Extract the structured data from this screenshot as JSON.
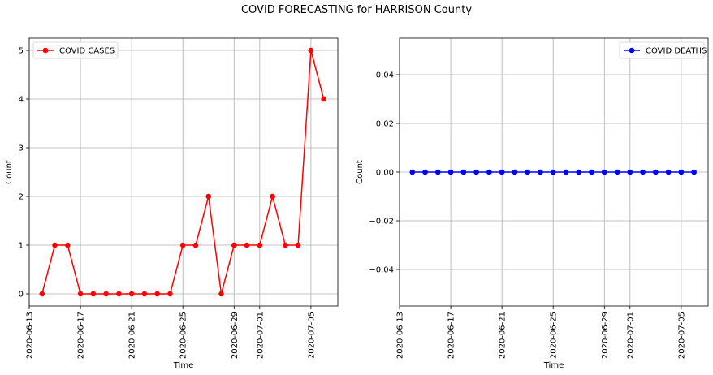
{
  "figure": {
    "title": "COVID FORECASTING for HARRISON County"
  },
  "chart_data": [
    {
      "type": "line",
      "title": "",
      "xlabel": "Time",
      "ylabel": "Count",
      "x": [
        "2020-06-14",
        "2020-06-15",
        "2020-06-16",
        "2020-06-17",
        "2020-06-18",
        "2020-06-19",
        "2020-06-20",
        "2020-06-21",
        "2020-06-22",
        "2020-06-23",
        "2020-06-24",
        "2020-06-25",
        "2020-06-26",
        "2020-06-27",
        "2020-06-28",
        "2020-06-29",
        "2020-06-30",
        "2020-07-01",
        "2020-07-02",
        "2020-07-03",
        "2020-07-04",
        "2020-07-05",
        "2020-07-06"
      ],
      "series": [
        {
          "name": "COVID CASES",
          "color": "#ff0000",
          "marker": "circle",
          "values": [
            0,
            1,
            1,
            0,
            0,
            0,
            0,
            0,
            0,
            0,
            0,
            1,
            1,
            2,
            0,
            1,
            1,
            1,
            2,
            1,
            1,
            5,
            4
          ]
        }
      ],
      "xticks": [
        "2020-06-13",
        "2020-06-17",
        "2020-06-21",
        "2020-06-25",
        "2020-06-29",
        "2020-07-01",
        "2020-07-05"
      ],
      "yticks": [
        0,
        1,
        2,
        3,
        4,
        5
      ],
      "ylim": [
        -0.25,
        5.25
      ],
      "grid": true,
      "legend": "top-left"
    },
    {
      "type": "line",
      "title": "",
      "xlabel": "Time",
      "ylabel": "Count",
      "x": [
        "2020-06-14",
        "2020-06-15",
        "2020-06-16",
        "2020-06-17",
        "2020-06-18",
        "2020-06-19",
        "2020-06-20",
        "2020-06-21",
        "2020-06-22",
        "2020-06-23",
        "2020-06-24",
        "2020-06-25",
        "2020-06-26",
        "2020-06-27",
        "2020-06-28",
        "2020-06-29",
        "2020-06-30",
        "2020-07-01",
        "2020-07-02",
        "2020-07-03",
        "2020-07-04",
        "2020-07-05",
        "2020-07-06"
      ],
      "series": [
        {
          "name": "COVID DEATHS",
          "color": "#0000ff",
          "marker": "circle",
          "values": [
            0,
            0,
            0,
            0,
            0,
            0,
            0,
            0,
            0,
            0,
            0,
            0,
            0,
            0,
            0,
            0,
            0,
            0,
            0,
            0,
            0,
            0,
            0
          ]
        }
      ],
      "xticks": [
        "2020-06-13",
        "2020-06-17",
        "2020-06-21",
        "2020-06-25",
        "2020-06-29",
        "2020-07-01",
        "2020-07-05"
      ],
      "yticks": [
        "0.04",
        "0.02",
        "0.00",
        "−0.02",
        "−0.04"
      ],
      "ytick_values": [
        0.04,
        0.02,
        0,
        -0.02,
        -0.04
      ],
      "ylim": [
        -0.055,
        0.055
      ],
      "grid": true,
      "legend": "top-right"
    }
  ]
}
